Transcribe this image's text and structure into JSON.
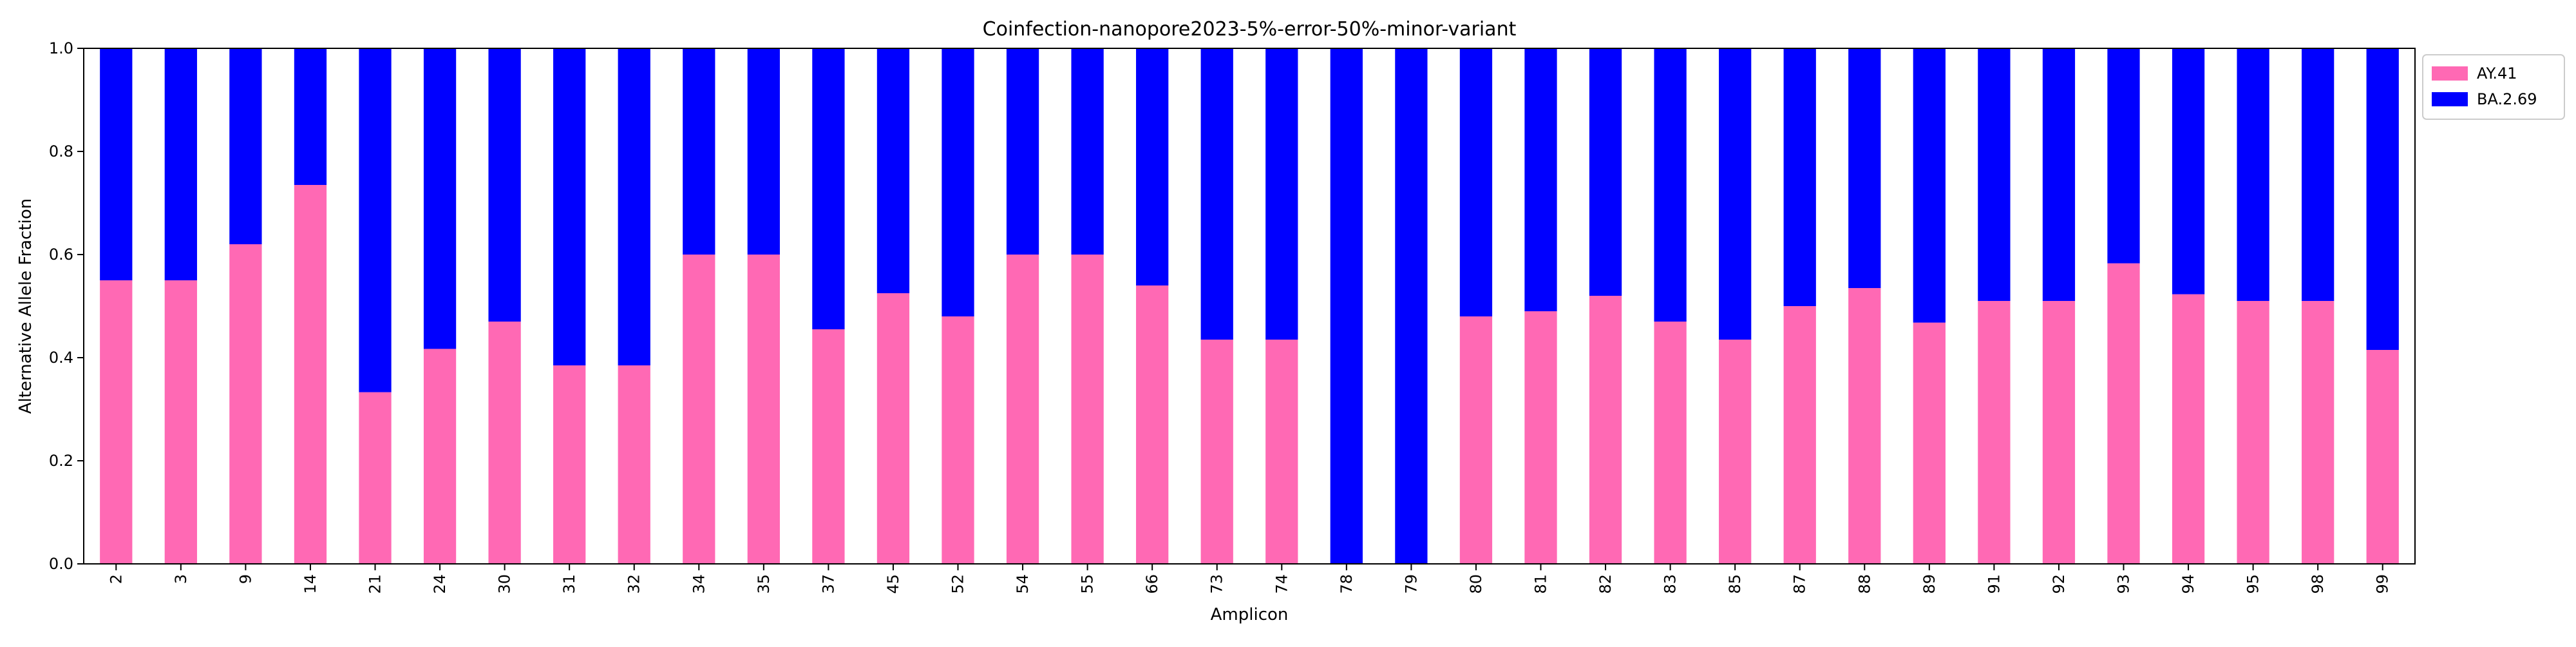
{
  "chart_data": {
    "type": "bar",
    "stacked": true,
    "title": "Coinfection-nanopore2023-5%-error-50%-minor-variant",
    "xlabel": "Amplicon",
    "ylabel": "Alternative Allele Fraction",
    "ylim": [
      0,
      1.0
    ],
    "yticks": [
      "0.0",
      "0.2",
      "0.4",
      "0.6",
      "0.8",
      "1.0"
    ],
    "grid": false,
    "legend_position": "outside-top-right",
    "categories": [
      "2",
      "3",
      "9",
      "14",
      "21",
      "24",
      "30",
      "31",
      "32",
      "34",
      "35",
      "37",
      "45",
      "52",
      "54",
      "55",
      "66",
      "73",
      "74",
      "78",
      "79",
      "80",
      "81",
      "82",
      "83",
      "85",
      "87",
      "88",
      "89",
      "91",
      "92",
      "93",
      "94",
      "95",
      "98",
      "99"
    ],
    "series": [
      {
        "name": "AY.41",
        "color": "#ff69b4",
        "values": [
          0.55,
          0.55,
          0.62,
          0.735,
          0.333,
          0.417,
          0.47,
          0.385,
          0.385,
          0.6,
          0.6,
          0.455,
          0.525,
          0.48,
          0.6,
          0.6,
          0.54,
          0.435,
          0.435,
          0.0,
          0.0,
          0.48,
          0.49,
          0.52,
          0.47,
          0.435,
          0.5,
          0.535,
          0.468,
          0.51,
          0.51,
          0.583,
          0.523,
          0.51,
          0.51,
          0.415
        ]
      },
      {
        "name": "BA.2.69",
        "color": "#0000ff",
        "values": [
          0.45,
          0.45,
          0.38,
          0.265,
          0.667,
          0.583,
          0.53,
          0.615,
          0.615,
          0.4,
          0.4,
          0.545,
          0.475,
          0.52,
          0.4,
          0.4,
          0.46,
          0.565,
          0.565,
          1.0,
          1.0,
          0.52,
          0.51,
          0.48,
          0.53,
          0.565,
          0.5,
          0.465,
          0.532,
          0.49,
          0.49,
          0.417,
          0.477,
          0.49,
          0.49,
          0.585
        ]
      }
    ]
  }
}
